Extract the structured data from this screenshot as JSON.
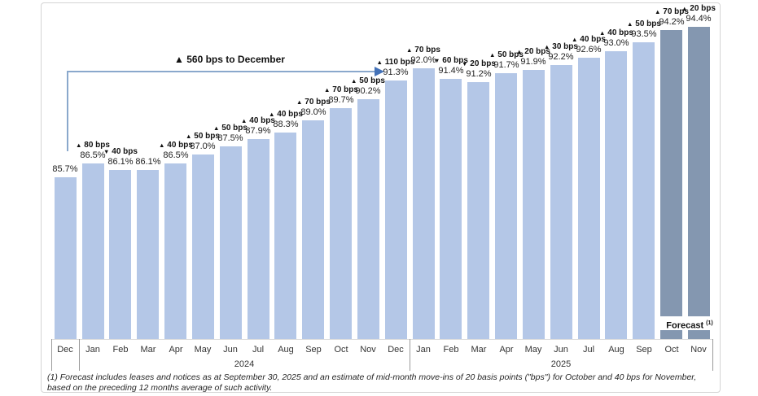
{
  "chart_data": {
    "type": "bar",
    "title": "",
    "y_unit": "percent",
    "ylim": [
      85.7,
      94.4
    ],
    "grid": false,
    "legend": "none",
    "annotation": {
      "marker": "▲",
      "text": "560 bps to December"
    },
    "bars": [
      {
        "month": "Dec",
        "group": 0,
        "value": 85.7,
        "value_label": "85.7%",
        "change_marker": null,
        "change_text": null,
        "forecast": false
      },
      {
        "month": "Jan",
        "group": 1,
        "value": 86.5,
        "value_label": "86.5%",
        "change_marker": "▲",
        "change_text": "80 bps",
        "forecast": false
      },
      {
        "month": "Feb",
        "group": 1,
        "value": 86.1,
        "value_label": "86.1%",
        "change_marker": "▼",
        "change_text": "40 bps",
        "forecast": false
      },
      {
        "month": "Mar",
        "group": 1,
        "value": 86.1,
        "value_label": "86.1%",
        "change_marker": null,
        "change_text": null,
        "forecast": false
      },
      {
        "month": "Apr",
        "group": 1,
        "value": 86.5,
        "value_label": "86.5%",
        "change_marker": "▲",
        "change_text": "40 bps",
        "forecast": false
      },
      {
        "month": "May",
        "group": 1,
        "value": 87.0,
        "value_label": "87.0%",
        "change_marker": "▲",
        "change_text": "50 bps",
        "forecast": false
      },
      {
        "month": "Jun",
        "group": 1,
        "value": 87.5,
        "value_label": "87.5%",
        "change_marker": "▲",
        "change_text": "50 bps",
        "forecast": false
      },
      {
        "month": "Jul",
        "group": 1,
        "value": 87.9,
        "value_label": "87.9%",
        "change_marker": "▲",
        "change_text": "40 bps",
        "forecast": false
      },
      {
        "month": "Aug",
        "group": 1,
        "value": 88.3,
        "value_label": "88.3%",
        "change_marker": "▲",
        "change_text": "40 bps",
        "forecast": false
      },
      {
        "month": "Sep",
        "group": 1,
        "value": 89.0,
        "value_label": "89.0%",
        "change_marker": "▲",
        "change_text": "70 bps",
        "forecast": false
      },
      {
        "month": "Oct",
        "group": 1,
        "value": 89.7,
        "value_label": "89.7%",
        "change_marker": "▲",
        "change_text": "70 bps",
        "forecast": false
      },
      {
        "month": "Nov",
        "group": 1,
        "value": 90.2,
        "value_label": "90.2%",
        "change_marker": "▲",
        "change_text": "50 bps",
        "forecast": false
      },
      {
        "month": "Dec",
        "group": 1,
        "value": 91.3,
        "value_label": "91.3%",
        "change_marker": "▲",
        "change_text": "110 bps",
        "forecast": false
      },
      {
        "month": "Jan",
        "group": 2,
        "value": 92.0,
        "value_label": "92.0%",
        "change_marker": "▲",
        "change_text": "70 bps",
        "forecast": false
      },
      {
        "month": "Feb",
        "group": 2,
        "value": 91.4,
        "value_label": "91.4%",
        "change_marker": "▼",
        "change_text": "60 bps",
        "forecast": false
      },
      {
        "month": "Mar",
        "group": 2,
        "value": 91.2,
        "value_label": "91.2%",
        "change_marker": "▼",
        "change_text": "20 bps",
        "forecast": false
      },
      {
        "month": "Apr",
        "group": 2,
        "value": 91.7,
        "value_label": "91.7%",
        "change_marker": "▲",
        "change_text": "50 bps",
        "forecast": false
      },
      {
        "month": "May",
        "group": 2,
        "value": 91.9,
        "value_label": "91.9%",
        "change_marker": "▲",
        "change_text": "20 bps",
        "forecast": false
      },
      {
        "month": "Jun",
        "group": 2,
        "value": 92.2,
        "value_label": "92.2%",
        "change_marker": "▲",
        "change_text": "30 bps",
        "forecast": false
      },
      {
        "month": "Jul",
        "group": 2,
        "value": 92.6,
        "value_label": "92.6%",
        "change_marker": "▲",
        "change_text": "40 bps",
        "forecast": false
      },
      {
        "month": "Aug",
        "group": 2,
        "value": 93.0,
        "value_label": "93.0%",
        "change_marker": "▲",
        "change_text": "40 bps",
        "forecast": false
      },
      {
        "month": "Sep",
        "group": 2,
        "value": 93.5,
        "value_label": "93.5%",
        "change_marker": "▲",
        "change_text": "50 bps",
        "forecast": false
      },
      {
        "month": "Oct",
        "group": 2,
        "value": 94.2,
        "value_label": "94.2%",
        "change_marker": "▲",
        "change_text": "70 bps",
        "forecast": true
      },
      {
        "month": "Nov",
        "group": 2,
        "value": 94.4,
        "value_label": "94.4%",
        "change_marker": "▲",
        "change_text": "20 bps",
        "forecast": true
      }
    ],
    "year_groups": [
      {
        "label": "2024",
        "from": 1,
        "to": 12
      },
      {
        "label": "2025",
        "from": 13,
        "to": 23
      }
    ],
    "forecast_note_label": "Forecast",
    "forecast_note_sup": "(1)"
  },
  "footnote": "(1) Forecast includes leases and notices as at September 30, 2025 and an estimate of mid-month move-ins of 20 basis points (\"bps\") for October and 40 bps for November, based on the preceding 12 months average of such activity.",
  "colors": {
    "bar": "#b4c7e7",
    "bar_forecast": "#8497b0",
    "arrow_line": "#8aa8cc",
    "arrow_head": "#4472b8",
    "text": "#262626",
    "border": "#d4d4d4"
  }
}
